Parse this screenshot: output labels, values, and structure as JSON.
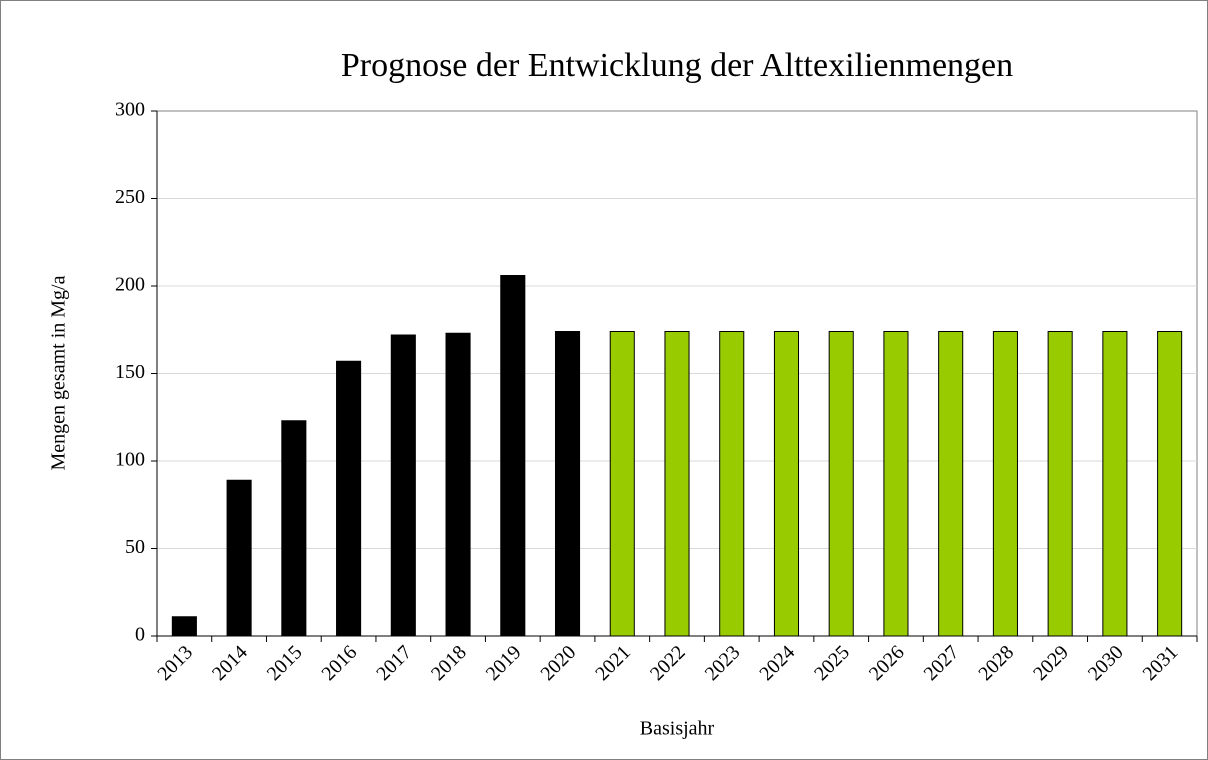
{
  "chart_data": {
    "type": "bar",
    "title": "Prognose der Entwicklung der Alttexilienmengen",
    "x_label": "Basisjahr",
    "y_label": "Mengen gesamt in Mg/a",
    "categories": [
      "2013",
      "2014",
      "2015",
      "2016",
      "2017",
      "2018",
      "2019",
      "2020",
      "2021",
      "2022",
      "2023",
      "2024",
      "2025",
      "2026",
      "2027",
      "2028",
      "2029",
      "2030",
      "2031"
    ],
    "values": [
      11,
      89,
      123,
      157,
      172,
      173,
      206,
      174,
      174,
      174,
      174,
      174,
      174,
      174,
      174,
      174,
      174,
      174,
      174
    ],
    "colors": [
      "#000000",
      "#000000",
      "#000000",
      "#000000",
      "#000000",
      "#000000",
      "#000000",
      "#000000",
      "#99cc00",
      "#99cc00",
      "#99cc00",
      "#99cc00",
      "#99cc00",
      "#99cc00",
      "#99cc00",
      "#99cc00",
      "#99cc00",
      "#99cc00",
      "#99cc00"
    ],
    "ylim": [
      0,
      300
    ],
    "yticks": [
      0,
      50,
      100,
      150,
      200,
      250,
      300
    ],
    "grid": true
  }
}
